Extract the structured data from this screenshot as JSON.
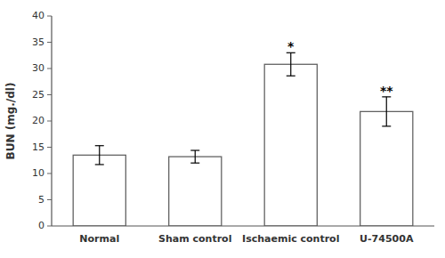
{
  "chart_data": {
    "type": "bar",
    "categories": [
      "Normal",
      "Sham control",
      "Ischaemic control",
      "U-74500A"
    ],
    "values": [
      13.5,
      13.2,
      30.8,
      21.8
    ],
    "errors": [
      1.8,
      1.2,
      2.2,
      2.8
    ],
    "color": "#ffffff",
    "ylim": [
      0,
      40
    ],
    "yticks": [
      0,
      5,
      10,
      15,
      20,
      25,
      30,
      35,
      40
    ],
    "ylabel": "BUN (mg./dl)",
    "grid": false,
    "annotations": [
      {
        "text": "*",
        "x": "Ischaemic control",
        "y": 33.4
      },
      {
        "text": "**",
        "x": "U-74500A",
        "y": 25.0
      }
    ]
  }
}
